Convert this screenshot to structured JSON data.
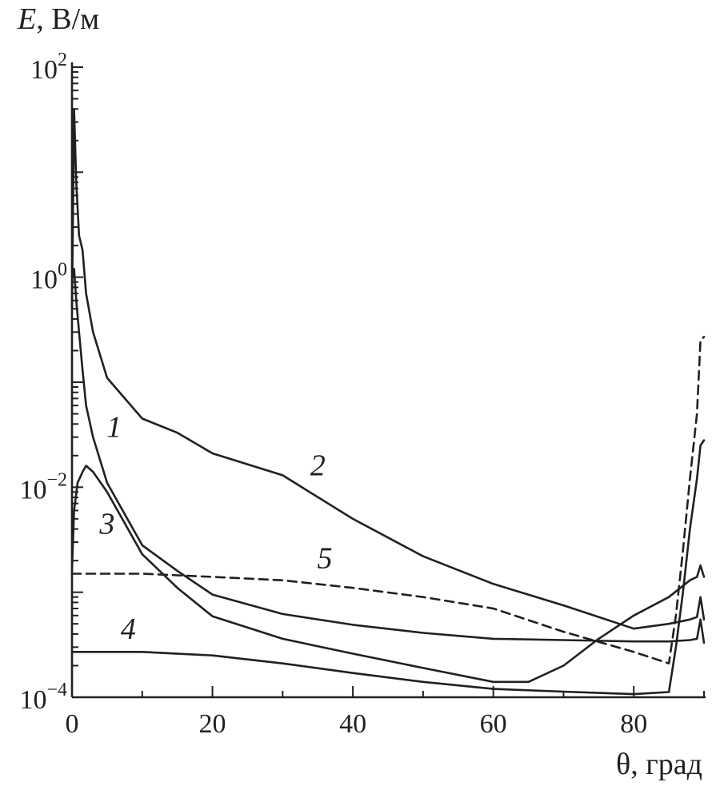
{
  "chart_data": {
    "type": "line",
    "ylabel_italic": "E",
    "ylabel_rest": ", В/м",
    "xlabel": "θ, град",
    "xlim": [
      0,
      90
    ],
    "ylim": [
      0.0001,
      100
    ],
    "y_scale": "log",
    "grid": false,
    "x_ticks": [
      "0",
      "20",
      "40",
      "60",
      "80"
    ],
    "x_tick_values": [
      0,
      20,
      40,
      60,
      80
    ],
    "y_ticks": [
      {
        "base": "10",
        "exp": "2",
        "value": 100
      },
      {
        "base": "10",
        "exp": "0",
        "value": 1
      },
      {
        "base": "10",
        "exp": "−2",
        "value": 0.01
      },
      {
        "base": "10",
        "exp": "−4",
        "value": 0.0001
      }
    ],
    "series": [
      {
        "name": "1",
        "dashed": false,
        "x": [
          0,
          0.3,
          0.6,
          1,
          1.5,
          2,
          3,
          5,
          10,
          15,
          20,
          30,
          40,
          50,
          60,
          70,
          80,
          85,
          88,
          89,
          89.5,
          90
        ],
        "y": [
          1,
          1.2,
          0.6,
          0.3,
          0.13,
          0.06,
          0.03,
          0.011,
          0.0028,
          0.0016,
          0.00095,
          0.00062,
          0.00049,
          0.00041,
          0.00036,
          0.00035,
          0.00034,
          0.00034,
          0.00035,
          0.00036,
          0.00055,
          0.00033
        ]
      },
      {
        "name": "2",
        "dashed": false,
        "x": [
          0,
          0.3,
          0.6,
          1,
          1.5,
          2,
          3,
          5,
          10,
          15,
          20,
          30,
          40,
          50,
          60,
          70,
          80,
          85,
          88,
          89,
          89.5,
          90
        ],
        "y": [
          0.5,
          40,
          8,
          2.5,
          1.8,
          0.7,
          0.3,
          0.11,
          0.045,
          0.033,
          0.021,
          0.013,
          0.005,
          0.0022,
          0.0012,
          0.00075,
          0.00045,
          0.0005,
          0.00055,
          0.00058,
          0.0009,
          0.00055
        ]
      },
      {
        "name": "3",
        "dashed": false,
        "x": [
          0,
          0.3,
          0.8,
          1.5,
          2,
          3,
          5,
          10,
          15,
          20,
          30,
          40,
          50,
          60,
          65,
          70,
          75,
          80,
          85,
          88,
          89,
          89.5,
          90
        ],
        "y": [
          0.0016,
          0.006,
          0.011,
          0.014,
          0.016,
          0.014,
          0.009,
          0.0023,
          0.0011,
          0.00059,
          0.00036,
          0.00026,
          0.00019,
          0.00014,
          0.00014,
          0.0002,
          0.00036,
          0.0006,
          0.0009,
          0.0013,
          0.0014,
          0.0018,
          0.0014
        ]
      },
      {
        "name": "4",
        "dashed": false,
        "x": [
          0,
          10,
          20,
          30,
          40,
          50,
          60,
          70,
          80,
          85,
          86,
          87,
          88,
          89,
          89.5,
          90
        ],
        "y": [
          0.00027,
          0.00027,
          0.00025,
          0.00021,
          0.00017,
          0.00014,
          0.00012,
          0.000113,
          0.000107,
          0.000112,
          0.0003,
          0.001,
          0.004,
          0.012,
          0.025,
          0.028
        ]
      },
      {
        "name": "5",
        "dashed": true,
        "x": [
          0,
          10,
          20,
          30,
          40,
          50,
          60,
          70,
          80,
          85,
          86,
          87,
          88,
          89,
          89.5,
          90
        ],
        "y": [
          0.0015,
          0.0015,
          0.0014,
          0.0013,
          0.0011,
          0.0009,
          0.0007,
          0.00042,
          0.00027,
          0.00021,
          0.0006,
          0.0025,
          0.012,
          0.05,
          0.25,
          0.27
        ]
      }
    ],
    "curve_labels": [
      {
        "text": "1",
        "x": 6,
        "y": 0.03
      },
      {
        "text": "2",
        "x": 35,
        "y": 0.013
      },
      {
        "text": "3",
        "x": 5,
        "y": 0.0036
      },
      {
        "text": "4",
        "x": 8,
        "y": 0.00036
      },
      {
        "text": "5",
        "x": 36,
        "y": 0.0017
      }
    ]
  }
}
